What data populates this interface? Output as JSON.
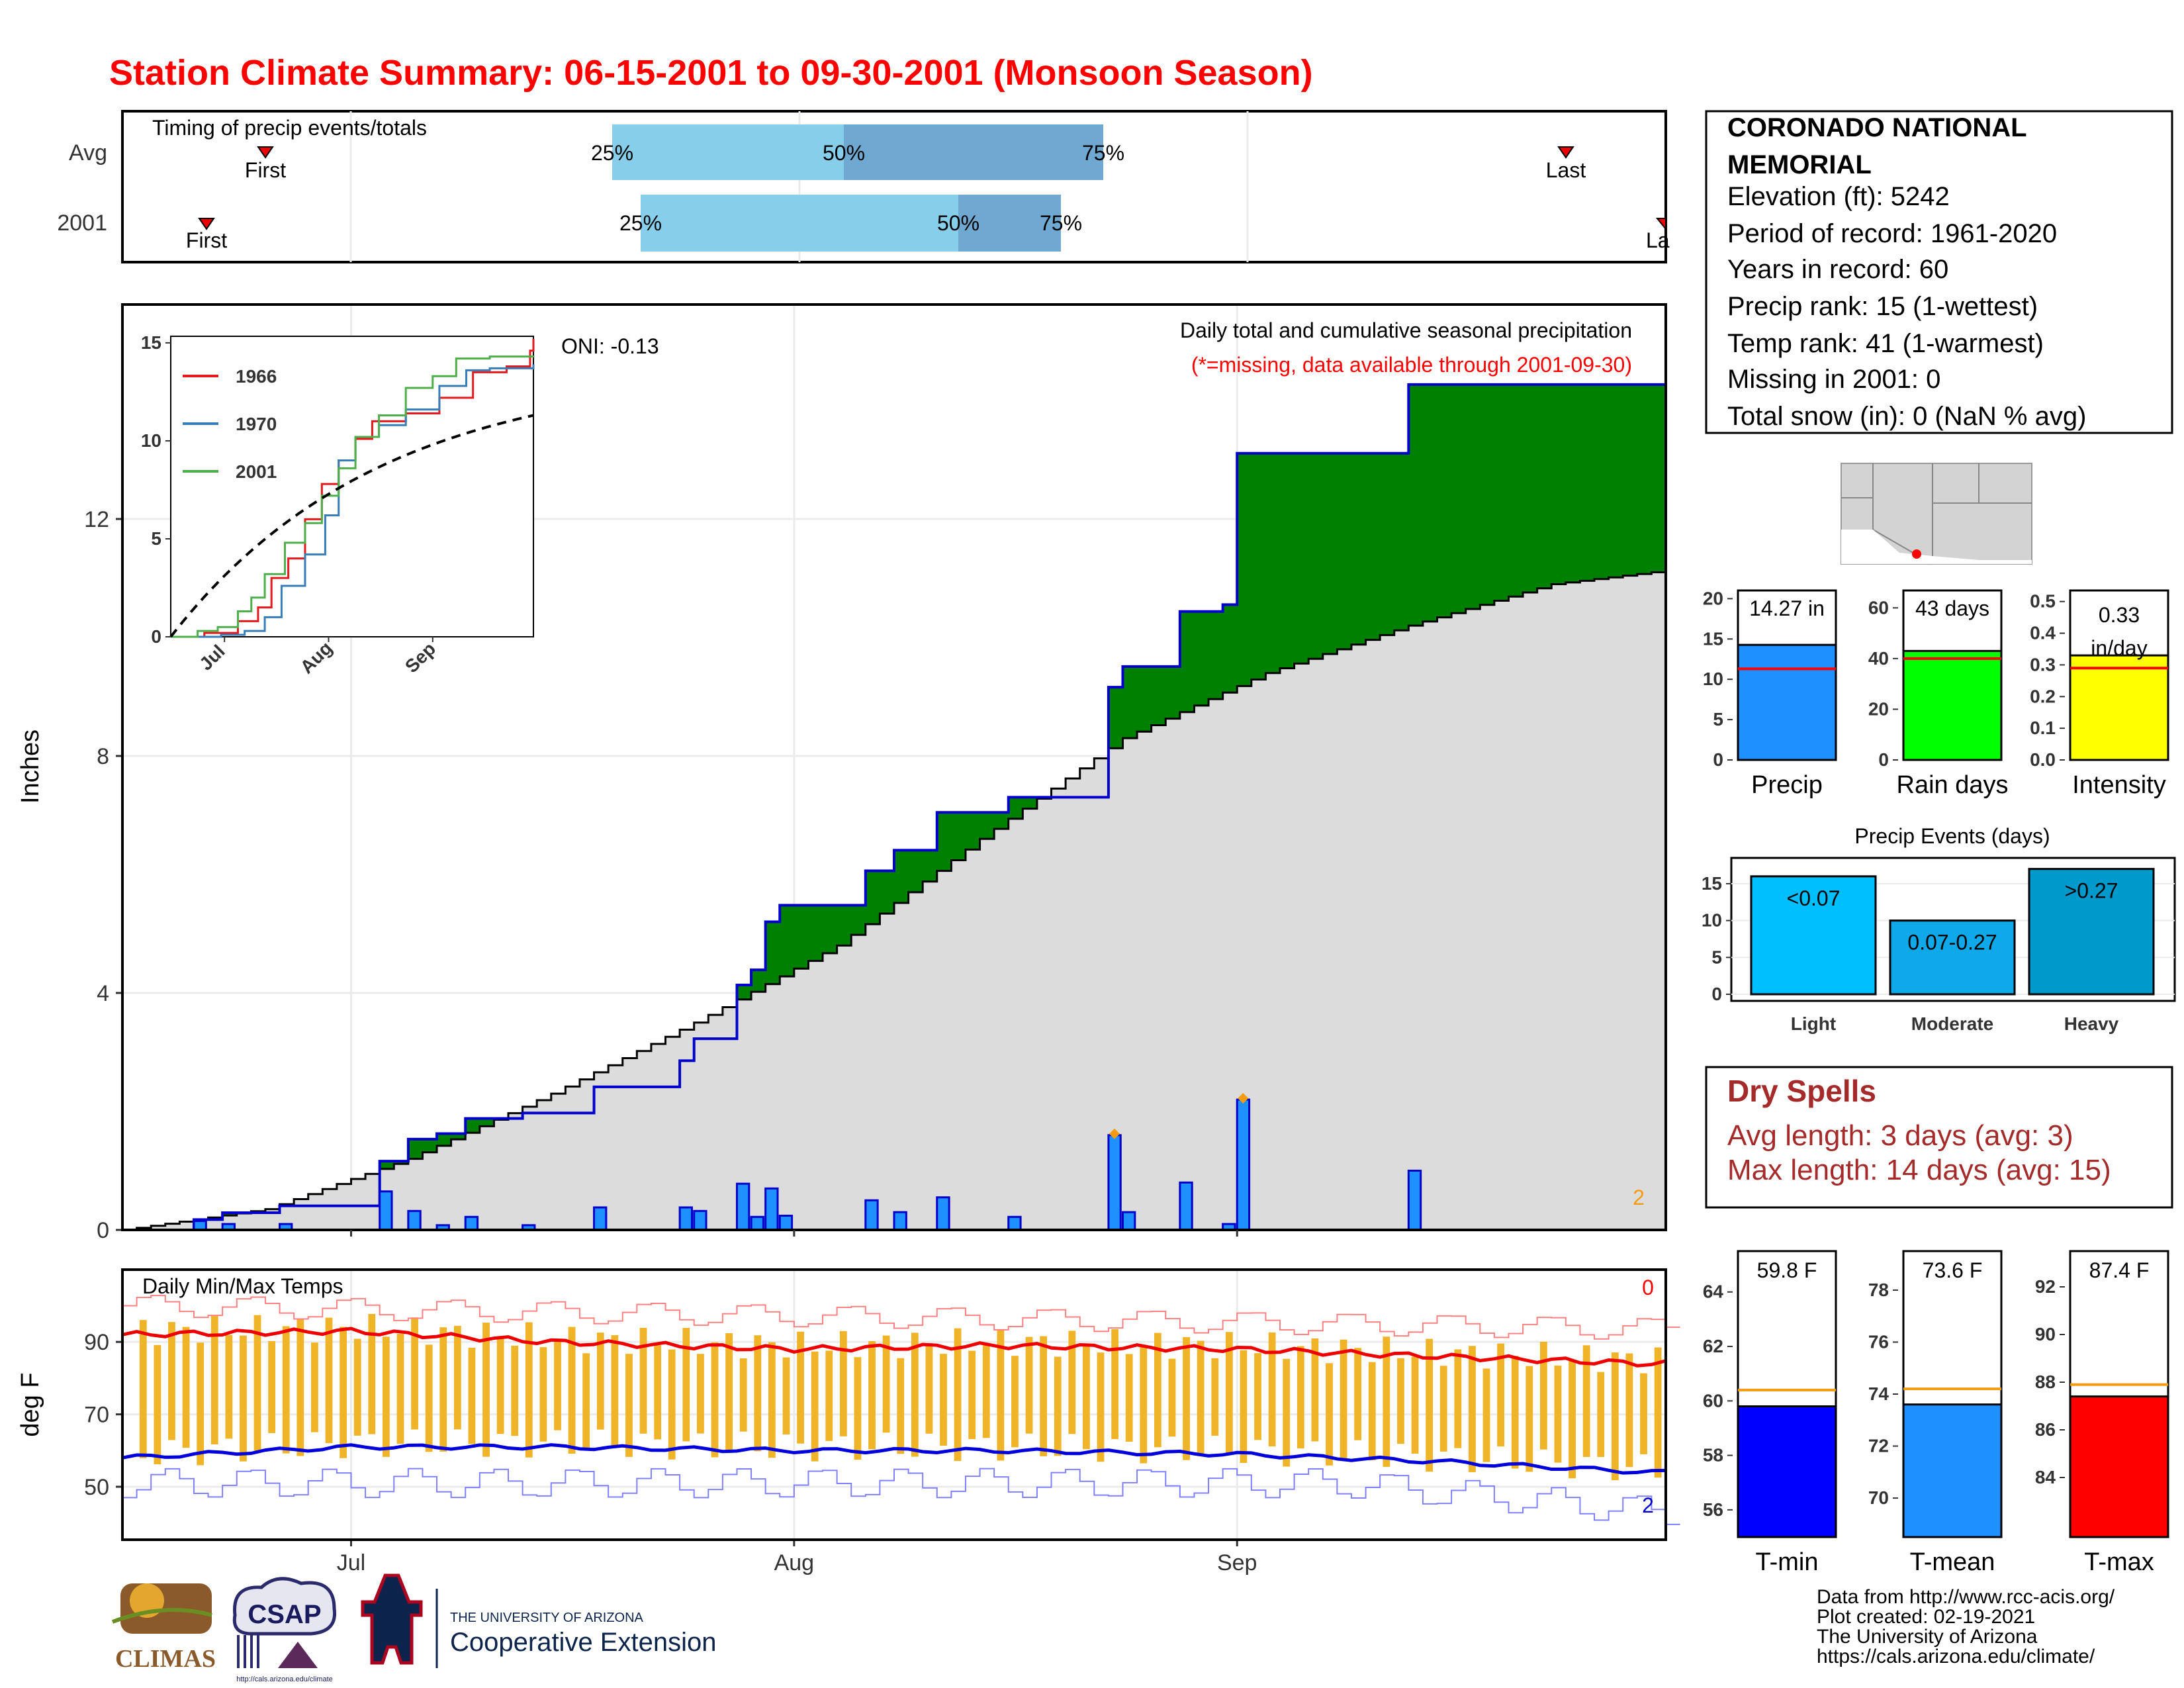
{
  "title": "Station Climate Summary: 06-15-2001 to 09-30-2001 (Monsoon Season)",
  "station": {
    "name_line1": "CORONADO NATIONAL",
    "name_line2": "MEMORIAL",
    "elevation": "Elevation (ft): 5242",
    "period": "Period of record: 1961-2020",
    "years": "Years in record: 60",
    "precip_rank": "Precip rank: 15 (1-wettest)",
    "temp_rank": "Temp rank: 41 (1-warmest)",
    "missing": "Missing in 2001: 0",
    "snow": "Total snow (in): 0 (NaN % avg)"
  },
  "timing": {
    "title": "Timing of precip events/totals",
    "rows": [
      "Avg",
      "2001"
    ],
    "first_label": "First",
    "last_label": "Last",
    "last_label_2001": "La",
    "pct_labels": [
      "25%",
      "50%",
      "75%"
    ]
  },
  "main": {
    "ylabel": "Inches",
    "caption": "Daily total and cumulative seasonal precipitation",
    "missing_note": "(*=missing, data available through 2001-09-30)",
    "oni": "ONI: -0.13",
    "corner_count": "2",
    "yticks": [
      "0",
      "4",
      "8",
      "12"
    ]
  },
  "inset": {
    "legend": [
      "1966",
      "1970",
      "2001"
    ],
    "yticks": [
      "0",
      "5",
      "10",
      "15"
    ],
    "xticks": [
      "Jul",
      "Aug",
      "Sep"
    ],
    "colors": [
      "#e41a1c",
      "#377eb8",
      "#4daf4a"
    ]
  },
  "temps": {
    "title": "Daily Min/Max Temps",
    "ylabel": "deg F",
    "yticks": [
      "50",
      "70",
      "90"
    ],
    "count_top": "0",
    "count_bottom": "2",
    "xticks": [
      "Jul",
      "Aug",
      "Sep"
    ]
  },
  "summary_bars": {
    "precip": {
      "label": "Precip",
      "value_text": "14.27 in",
      "value": 14.27,
      "avg": 11.3,
      "yticks": [
        "0",
        "5",
        "10",
        "15",
        "20"
      ],
      "ymax": 22,
      "color": "#1e90ff"
    },
    "raindays": {
      "label": "Rain days",
      "value_text": "43 days",
      "value": 43,
      "avg": 40,
      "yticks": [
        "0",
        "20",
        "40",
        "60"
      ],
      "ymax": 70,
      "color": "#00ff00"
    },
    "intensity": {
      "label": "Intensity",
      "value_text_1": "0.33",
      "value_text_2": "in/day",
      "value": 0.33,
      "avg": 0.29,
      "yticks": [
        "0.0",
        "0.1",
        "0.2",
        "0.3",
        "0.4",
        "0.5"
      ],
      "ymax": 0.56,
      "color": "#ffff00"
    }
  },
  "events": {
    "title": "Precip Events (days)",
    "yticks": [
      "0",
      "5",
      "10",
      "15"
    ],
    "categories": [
      "Light",
      "Moderate",
      "Heavy"
    ],
    "labels": [
      "<0.07",
      "0.07-0.27",
      ">0.27"
    ],
    "values": [
      16,
      10,
      17
    ],
    "colors": [
      "#00bfff",
      "#0fa8e8",
      "#0099cc"
    ]
  },
  "dry": {
    "title": "Dry Spells",
    "avg": "Avg length: 3 days (avg: 3)",
    "max": "Max length: 14 days (avg: 15)"
  },
  "temp_bars": {
    "tmin": {
      "label": "T-min",
      "value_text": "59.8 F",
      "value": 59.8,
      "avg": 60.4,
      "ymin": 55,
      "ymax": 65.5,
      "yticks": [
        "56",
        "58",
        "60",
        "62",
        "64"
      ],
      "color": "#0000ff"
    },
    "tmean": {
      "label": "T-mean",
      "value_text": "73.6 F",
      "value": 73.6,
      "avg": 74.2,
      "ymin": 68.5,
      "ymax": 79.5,
      "yticks": [
        "70",
        "72",
        "74",
        "76",
        "78"
      ],
      "color": "#1e90ff"
    },
    "tmax": {
      "label": "T-max",
      "value_text": "87.4 F",
      "value": 87.4,
      "avg": 87.9,
      "ymin": 81.5,
      "ymax": 93.5,
      "yticks": [
        "84",
        "86",
        "88",
        "90",
        "92"
      ],
      "color": "#ff0000"
    }
  },
  "footer": {
    "line1": "Data from http://www.rcc-acis.org/",
    "line2": "Plot created: 02-19-2021",
    "line3": "The University of Arizona",
    "line4": "https://cals.arizona.edu/climate/"
  },
  "logos": {
    "climas": "CLIMAS",
    "csap": "CSAP",
    "csap_url": "http://cals.arizona.edu/climate",
    "ua_small": "THE UNIVERSITY OF ARIZONA",
    "ua_big": "Cooperative Extension"
  },
  "chart_data": [
    {
      "type": "area",
      "title": "Daily total and cumulative seasonal precipitation",
      "ylabel": "Inches",
      "ylim": [
        0,
        15
      ],
      "x": [
        "06-15",
        "06-25",
        "07-05",
        "07-15",
        "07-25",
        "08-04",
        "08-14",
        "08-24",
        "09-03",
        "09-13",
        "09-23",
        "09-30"
      ],
      "series": [
        {
          "values": [
            0,
            0.45,
            1.6,
            2.0,
            3.6,
            5.8,
            7.0,
            10.6,
            13.0,
            14.2,
            14.27,
            14.27
          ]
        },
        {
          "values": [
            0,
            0.35,
            1.2,
            2.3,
            3.5,
            4.8,
            6.6,
            8.3,
            9.4,
            10.2,
            10.9,
            11.1
          ]
        }
      ]
    },
    {
      "type": "bar",
      "title": "Daily total and cumulative seasonal precipitation",
      "x": [
        "06-20",
        "06-22",
        "06-26",
        "07-03",
        "07-05",
        "07-07",
        "07-09",
        "07-13",
        "07-18",
        "07-24",
        "07-25",
        "07-28",
        "07-29",
        "07-30",
        "07-31",
        "08-06",
        "08-08",
        "08-11",
        "08-16",
        "08-23",
        "08-24",
        "08-28",
        "08-31",
        "09-01",
        "09-13"
      ],
      "values": [
        0.15,
        0.1,
        0.1,
        0.65,
        0.32,
        0.08,
        0.22,
        0.08,
        0.38,
        0.38,
        0.32,
        0.78,
        0.22,
        0.7,
        0.24,
        0.5,
        0.3,
        0.55,
        0.22,
        1.6,
        0.3,
        0.8,
        0.1,
        2.2,
        1.0
      ]
    },
    {
      "type": "line",
      "title": "Daily Min/Max Temps",
      "ylabel": "deg F",
      "x": [
        "06-15",
        "07-01",
        "07-15",
        "08-01",
        "08-15",
        "09-01",
        "09-15",
        "09-30"
      ],
      "series": [
        {
          "values": [
            92,
            93,
            90,
            88,
            89,
            88,
            86,
            84
          ]
        },
        {
          "values": [
            58,
            61,
            61,
            60,
            60,
            59,
            57,
            54
          ]
        }
      ]
    },
    {
      "type": "bar",
      "title": "Precip Events (days)",
      "categories": [
        "Light",
        "Moderate",
        "Heavy"
      ],
      "values": [
        16,
        10,
        17
      ]
    }
  ]
}
